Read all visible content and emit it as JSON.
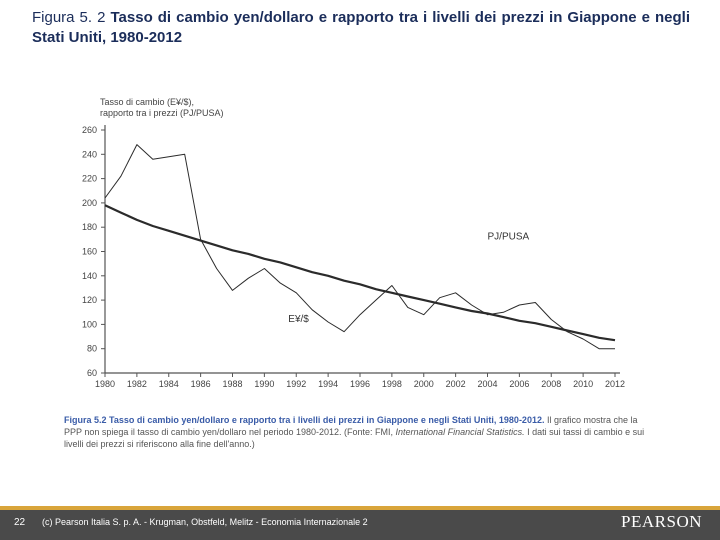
{
  "title": {
    "label": "Figura 5. 2",
    "text": "Tasso di cambio yen/dollaro e rapporto tra i livelli dei prezzi in Giappone e negli Stati Uniti, 1980-2012"
  },
  "chart": {
    "type": "line",
    "background_color": "#ffffff",
    "axis_color": "#555555",
    "tick_color": "#888888",
    "grid_color": "#e8e8e8",
    "y_title_lines": [
      "Tasso di cambio (E¥/$),",
      "rapporto tra i prezzi (PJ/PUSA)"
    ],
    "title_fontsize": 9,
    "ylim": [
      60,
      260
    ],
    "ytick_step": 20,
    "xlim": [
      1980,
      2012
    ],
    "xtick_step": 2,
    "xticks": [
      1980,
      1982,
      1984,
      1986,
      1988,
      1990,
      1992,
      1994,
      1996,
      1998,
      2000,
      2002,
      2004,
      2006,
      2008,
      2010,
      2012
    ],
    "series": [
      {
        "name": "P_J/P_USA",
        "label": "PJ/PUSA",
        "label_pos": {
          "x": 2004,
          "y": 170
        },
        "color": "#2b2b2b",
        "width": 2.2,
        "years": [
          1980,
          1981,
          1982,
          1983,
          1984,
          1985,
          1986,
          1987,
          1988,
          1989,
          1990,
          1991,
          1992,
          1993,
          1994,
          1995,
          1996,
          1997,
          1998,
          1999,
          2000,
          2001,
          2002,
          2003,
          2004,
          2005,
          2006,
          2007,
          2008,
          2009,
          2010,
          2011,
          2012
        ],
        "values": [
          198,
          192,
          186,
          181,
          177,
          173,
          169,
          165,
          161,
          158,
          154,
          151,
          147,
          143,
          140,
          136,
          133,
          129,
          126,
          123,
          120,
          117,
          114,
          111,
          109,
          106,
          103,
          101,
          98,
          95,
          92,
          89,
          87
        ]
      },
      {
        "name": "E_¥/$",
        "label": "E¥/$",
        "label_pos": {
          "x": 1991.5,
          "y": 102
        },
        "color": "#2b2b2b",
        "width": 1.0,
        "years": [
          1980,
          1981,
          1982,
          1983,
          1984,
          1985,
          1986,
          1987,
          1988,
          1989,
          1990,
          1991,
          1992,
          1993,
          1994,
          1995,
          1996,
          1997,
          1998,
          1999,
          2000,
          2001,
          2002,
          2003,
          2004,
          2005,
          2006,
          2007,
          2008,
          2009,
          2010,
          2011,
          2012
        ],
        "values": [
          204,
          222,
          248,
          236,
          238,
          240,
          170,
          146,
          128,
          138,
          146,
          134,
          126,
          112,
          102,
          94,
          108,
          120,
          132,
          114,
          108,
          122,
          126,
          116,
          108,
          110,
          116,
          118,
          104,
          94,
          88,
          80,
          80
        ]
      }
    ]
  },
  "caption": {
    "title": "Figura 5.2 Tasso di cambio yen/dollaro e rapporto tra i livelli dei prezzi in Giappone e negli Stati Uniti, 1980-2012.",
    "body_prefix": "Il grafico mostra che la PPP non spiega il tasso di cambio yen/dollaro nel periodo 1980-2012. (Fonte: FMI, ",
    "body_italic": "International Financial Statistics.",
    "body_suffix": " I dati sui tassi di cambio e sui livelli dei prezzi si riferiscono alla fine dell'anno.)"
  },
  "footer": {
    "page": "22",
    "copyright": "(c) Pearson Italia S. p. A. - Krugman, Obstfeld, Melitz - Economia Internazionale 2",
    "brand": "PEARSON",
    "bg": "#4a4a4a",
    "stripe": "#d9a53a",
    "text_color": "#ffffff"
  }
}
